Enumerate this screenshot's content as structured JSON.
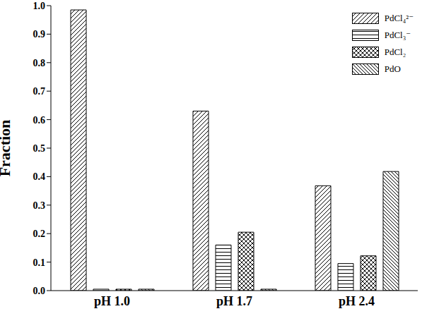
{
  "chart_data": {
    "type": "bar",
    "ylabel": "Fraction",
    "categories": [
      "pH 1.0",
      "pH 1.7",
      "pH 2.4"
    ],
    "series": [
      {
        "name": "PdCl₄²⁻",
        "color": "#000000",
        "values": [
          0.985,
          0.63,
          0.368
        ]
      },
      {
        "name": "PdCl₃⁻",
        "color": "#000000",
        "values": [
          0.005,
          0.16,
          0.095
        ]
      },
      {
        "name": "PdCl₂",
        "color": "#000000",
        "values": [
          0.005,
          0.205,
          0.122
        ]
      },
      {
        "name": "PdO",
        "color": "#000000",
        "values": [
          0.005,
          0.005,
          0.418
        ]
      }
    ],
    "ylim": [
      0,
      1
    ],
    "yticks": [
      {
        "value": 0,
        "label": "0.0"
      },
      0.1,
      0.2,
      0.3,
      0.4,
      0.5,
      0.6,
      0.7,
      0.8,
      0.9,
      {
        "value": 1,
        "label": "1.0"
      }
    ],
    "grid": false,
    "legend": "upper right"
  }
}
